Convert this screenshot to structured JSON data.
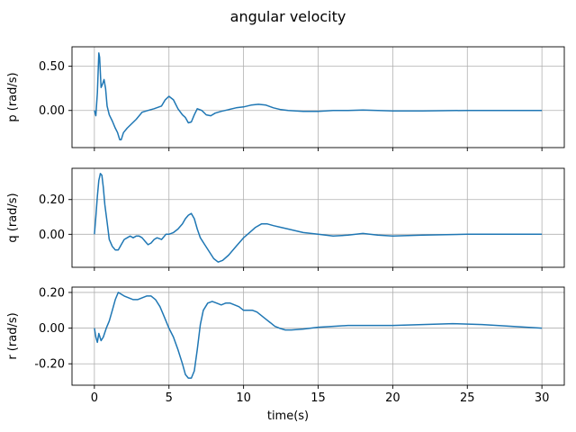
{
  "chart_data": {
    "type": "line",
    "title": "angular velocity",
    "xlabel": "time(s)",
    "xlim": [
      -1.5,
      31.5
    ],
    "xticks": [
      0,
      5,
      10,
      15,
      20,
      25,
      30
    ],
    "xtick_labels": [
      "0",
      "5",
      "10",
      "15",
      "20",
      "25",
      "30"
    ],
    "grid": true,
    "line_color": "#1f77b4",
    "subplots": [
      {
        "ylabel": "p (rad/s)",
        "ylim": [
          -0.42,
          0.72
        ],
        "yticks": [
          0.0,
          0.5
        ],
        "ytick_labels": [
          "0.00",
          "0.50"
        ],
        "x": [
          0,
          0.1,
          0.2,
          0.3,
          0.35,
          0.45,
          0.55,
          0.65,
          0.75,
          0.85,
          1.0,
          1.2,
          1.4,
          1.55,
          1.7,
          1.8,
          1.95,
          2.2,
          2.5,
          2.8,
          3.2,
          3.6,
          4.0,
          4.5,
          4.75,
          5.0,
          5.3,
          5.6,
          5.9,
          6.1,
          6.3,
          6.5,
          6.7,
          6.9,
          7.2,
          7.5,
          7.8,
          8.1,
          8.5,
          9.0,
          9.5,
          10.0,
          10.5,
          11.0,
          11.5,
          12.0,
          12.5,
          13.0,
          14.0,
          15.0,
          16.0,
          17.0,
          18.0,
          19.0,
          20.0,
          22.0,
          25.0,
          28.0,
          30.0
        ],
        "values": [
          0.0,
          -0.06,
          0.2,
          0.65,
          0.6,
          0.26,
          0.3,
          0.35,
          0.25,
          0.05,
          -0.05,
          -0.12,
          -0.2,
          -0.25,
          -0.33,
          -0.33,
          -0.25,
          -0.2,
          -0.15,
          -0.1,
          -0.02,
          0.0,
          0.02,
          0.05,
          0.12,
          0.16,
          0.12,
          0.02,
          -0.05,
          -0.08,
          -0.14,
          -0.13,
          -0.05,
          0.02,
          0.0,
          -0.05,
          -0.06,
          -0.03,
          -0.01,
          0.01,
          0.03,
          0.04,
          0.06,
          0.07,
          0.06,
          0.03,
          0.01,
          0.0,
          -0.01,
          -0.01,
          0.0,
          0.0,
          0.005,
          0.0,
          -0.005,
          -0.005,
          0.0,
          0.0,
          0.0
        ]
      },
      {
        "ylabel": "q (rad/s)",
        "ylim": [
          -0.19,
          0.38
        ],
        "yticks": [
          0.0,
          0.2
        ],
        "ytick_labels": [
          "0.00",
          "0.20"
        ],
        "x": [
          0,
          0.1,
          0.2,
          0.3,
          0.4,
          0.5,
          0.6,
          0.7,
          0.85,
          1.0,
          1.2,
          1.4,
          1.6,
          1.8,
          2.0,
          2.2,
          2.4,
          2.6,
          2.8,
          3.0,
          3.2,
          3.4,
          3.6,
          3.8,
          4.0,
          4.2,
          4.5,
          4.8,
          5.0,
          5.3,
          5.6,
          5.9,
          6.1,
          6.3,
          6.5,
          6.7,
          6.9,
          7.1,
          7.4,
          7.7,
          8.0,
          8.3,
          8.6,
          9.0,
          9.5,
          10.0,
          10.4,
          10.8,
          11.2,
          11.6,
          12.0,
          12.5,
          13.0,
          14.0,
          15.0,
          16.0,
          17.0,
          18.0,
          19.0,
          20.0,
          22.0,
          25.0,
          28.0,
          30.0
        ],
        "values": [
          0.0,
          0.1,
          0.22,
          0.31,
          0.35,
          0.34,
          0.27,
          0.17,
          0.07,
          -0.03,
          -0.07,
          -0.09,
          -0.09,
          -0.06,
          -0.03,
          -0.02,
          -0.01,
          -0.02,
          -0.01,
          -0.01,
          -0.02,
          -0.04,
          -0.06,
          -0.05,
          -0.03,
          -0.02,
          -0.03,
          0.0,
          0.0,
          0.01,
          0.03,
          0.06,
          0.09,
          0.11,
          0.12,
          0.09,
          0.03,
          -0.02,
          -0.06,
          -0.1,
          -0.14,
          -0.16,
          -0.15,
          -0.12,
          -0.07,
          -0.02,
          0.01,
          0.04,
          0.06,
          0.06,
          0.05,
          0.04,
          0.03,
          0.01,
          0.0,
          -0.01,
          -0.005,
          0.005,
          -0.005,
          -0.01,
          -0.005,
          0.0,
          0.0,
          0.0
        ]
      },
      {
        "ylabel": "r (rad/s)",
        "ylim": [
          -0.32,
          0.23
        ],
        "yticks": [
          -0.2,
          0.0,
          0.2
        ],
        "ytick_labels": [
          "-0.20",
          "0.00",
          "0.20"
        ],
        "x": [
          0,
          0.1,
          0.2,
          0.3,
          0.45,
          0.6,
          0.8,
          1.0,
          1.2,
          1.4,
          1.6,
          1.8,
          2.0,
          2.3,
          2.6,
          2.9,
          3.2,
          3.5,
          3.8,
          4.1,
          4.4,
          4.7,
          5.0,
          5.3,
          5.6,
          5.9,
          6.1,
          6.3,
          6.5,
          6.7,
          6.9,
          7.1,
          7.3,
          7.6,
          7.9,
          8.2,
          8.5,
          8.8,
          9.1,
          9.4,
          9.7,
          10.0,
          10.3,
          10.6,
          10.9,
          11.2,
          11.5,
          11.8,
          12.1,
          12.4,
          12.8,
          13.2,
          14.0,
          15.0,
          16.0,
          17.0,
          18.0,
          20.0,
          22.0,
          24.0,
          26.0,
          28.0,
          30.0
        ],
        "values": [
          0.0,
          -0.05,
          -0.08,
          -0.03,
          -0.07,
          -0.05,
          0.0,
          0.04,
          0.1,
          0.16,
          0.2,
          0.19,
          0.18,
          0.17,
          0.16,
          0.16,
          0.17,
          0.18,
          0.18,
          0.16,
          0.12,
          0.06,
          0.0,
          -0.05,
          -0.12,
          -0.2,
          -0.26,
          -0.28,
          -0.28,
          -0.24,
          -0.12,
          0.02,
          0.1,
          0.14,
          0.15,
          0.14,
          0.13,
          0.14,
          0.14,
          0.13,
          0.12,
          0.1,
          0.1,
          0.1,
          0.09,
          0.07,
          0.05,
          0.03,
          0.01,
          0.0,
          -0.01,
          -0.01,
          -0.005,
          0.005,
          0.01,
          0.015,
          0.015,
          0.015,
          0.02,
          0.025,
          0.02,
          0.01,
          0.0
        ]
      }
    ]
  }
}
